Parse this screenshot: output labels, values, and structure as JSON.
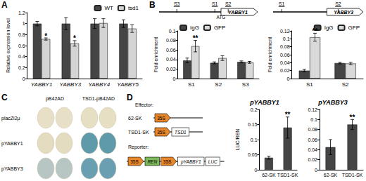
{
  "panel_labels": [
    "A",
    "B",
    "C",
    "D"
  ],
  "chart_data": [
    {
      "type": "bar",
      "y_label": "Relative expression level",
      "categories": [
        "YABBY1",
        "YABBY3",
        "YABBY4",
        "YABBY5"
      ],
      "series": [
        {
          "name": "WT",
          "color": "#454545",
          "values": [
            1.0,
            1.0,
            1.0,
            1.0
          ],
          "errors": [
            0.04,
            0.11,
            0.09,
            0.07
          ]
        },
        {
          "name": "tsd1",
          "color": "#d4d4d4",
          "values": [
            0.72,
            0.64,
            1.01,
            0.91
          ],
          "errors": [
            0.02,
            0.05,
            0.08,
            0.07
          ]
        }
      ],
      "ylim": [
        0,
        1.2
      ],
      "yticks": [
        0,
        0.2,
        0.4,
        0.6,
        0.8,
        1,
        1.2
      ],
      "grid": false,
      "legend": "upper right",
      "annotations": [
        {
          "series": "tsd1",
          "category": "YABBY1",
          "text": "*"
        },
        {
          "series": "tsd1",
          "category": "YABBY3",
          "text": "*"
        }
      ]
    },
    {
      "type": "bar",
      "y_label": "Fold enrichment",
      "categories": [
        "S1",
        "S2",
        "S3"
      ],
      "series": [
        {
          "name": "IgG",
          "color": "#454545",
          "values": [
            0.038,
            0.033,
            0.035
          ],
          "errors": [
            0.005,
            0.002,
            0.002
          ]
        },
        {
          "name": "GFP",
          "color": "#d9d9d9",
          "values": [
            0.068,
            0.043,
            0.034
          ],
          "errors": [
            0.012,
            0.005,
            0.002
          ]
        }
      ],
      "ylim": [
        0,
        0.1
      ],
      "yticks": [
        0,
        0.02,
        0.04,
        0.06,
        0.08,
        0.1
      ],
      "grid": false,
      "legend": "upper left",
      "annotations": [
        {
          "series": "GFP",
          "category": "S1",
          "text": "**"
        }
      ]
    },
    {
      "type": "bar",
      "y_label": "Fold enrichment",
      "categories": [
        "S1",
        "S2"
      ],
      "series": [
        {
          "name": "IgG",
          "color": "#454545",
          "values": [
            0.02,
            0.039
          ],
          "errors": [
            0.003,
            0.002
          ]
        },
        {
          "name": "GFP",
          "color": "#d9d9d9",
          "values": [
            0.104,
            0.038
          ],
          "errors": [
            0.01,
            0.003
          ]
        }
      ],
      "ylim": [
        0,
        0.12
      ],
      "yticks": [
        0,
        0.02,
        0.04,
        0.06,
        0.08,
        0.1,
        0.12
      ],
      "grid": false,
      "legend": "upper right",
      "annotations": [
        {
          "series": "GFP",
          "category": "S1",
          "text": "**"
        }
      ]
    },
    {
      "type": "bar",
      "title": "pYABBY1",
      "y_label": "LUC/REN",
      "categories": [
        "62-SK",
        "TSD1-SK"
      ],
      "series": [
        {
          "color": "#454545",
          "values": [
            0.04,
            0.14
          ],
          "errors": [
            0.005,
            0.035
          ]
        }
      ],
      "ylim": [
        0,
        0.2
      ],
      "yticks": [
        0,
        0.05,
        0.1,
        0.15,
        0.2
      ],
      "grid": false,
      "annotations": [
        {
          "category": "TSD1-SK",
          "text": "**"
        }
      ]
    },
    {
      "type": "bar",
      "title": "pYABBY3",
      "categories": [
        "62-SK",
        "TSD1-SK"
      ],
      "series": [
        {
          "color": "#454545",
          "values": [
            0.045,
            0.09
          ],
          "errors": [
            0.015,
            0.01
          ]
        }
      ],
      "ylim": [
        0,
        0.12
      ],
      "yticks": [
        0,
        0.02,
        0.04,
        0.06,
        0.08,
        0.1,
        0.12
      ],
      "grid": false,
      "annotations": [
        {
          "category": "TSD1-SK",
          "text": "**"
        }
      ]
    }
  ],
  "gene_schematics": [
    {
      "gene": "YABBY1",
      "start_codon": "ATG",
      "sites": [
        "S3",
        "S1",
        "S2"
      ]
    },
    {
      "gene": "YABBY3",
      "sites": [
        "S1",
        "S2"
      ]
    }
  ],
  "yeast_assay": {
    "columns": [
      "pB42AD",
      "TSD1-pB42AD"
    ],
    "rows": [
      {
        "label": "placZi2μ",
        "colors": [
          "#e8e0c6",
          "#e6dfc4"
        ]
      },
      {
        "label": "pYABBY1",
        "colors": [
          "#e4dcc0",
          "#5e9aaa"
        ]
      },
      {
        "label": "pYABBY3",
        "colors": [
          "#b7c6c2",
          "#6a9fb2"
        ]
      }
    ]
  },
  "constructs": {
    "effector_label": "Effector:",
    "effectors": [
      {
        "name": "62-SK",
        "parts": [
          {
            "label": "35S",
            "shape": "arrow",
            "color": "#e8862a"
          }
        ]
      },
      {
        "name": "TSD1-SK",
        "parts": [
          {
            "label": "35S",
            "shape": "arrow",
            "color": "#e8862a"
          },
          {
            "label": "TSD1",
            "shape": "box",
            "color": "#ffffff"
          }
        ]
      }
    ],
    "reporter_label": "Reporter:",
    "reporter_parts": [
      {
        "label": "35S",
        "shape": "arrow",
        "color": "#e8862a"
      },
      {
        "label": "REN",
        "shape": "box",
        "color": "#7db85a"
      },
      {
        "label": "35S",
        "shape": "arrow",
        "color": "#e8862a"
      },
      {
        "label": "pYABBY1",
        "shape": "box",
        "color": "#ffffff"
      },
      {
        "label": "LUC",
        "shape": "box",
        "color": "#ffffff"
      }
    ]
  }
}
